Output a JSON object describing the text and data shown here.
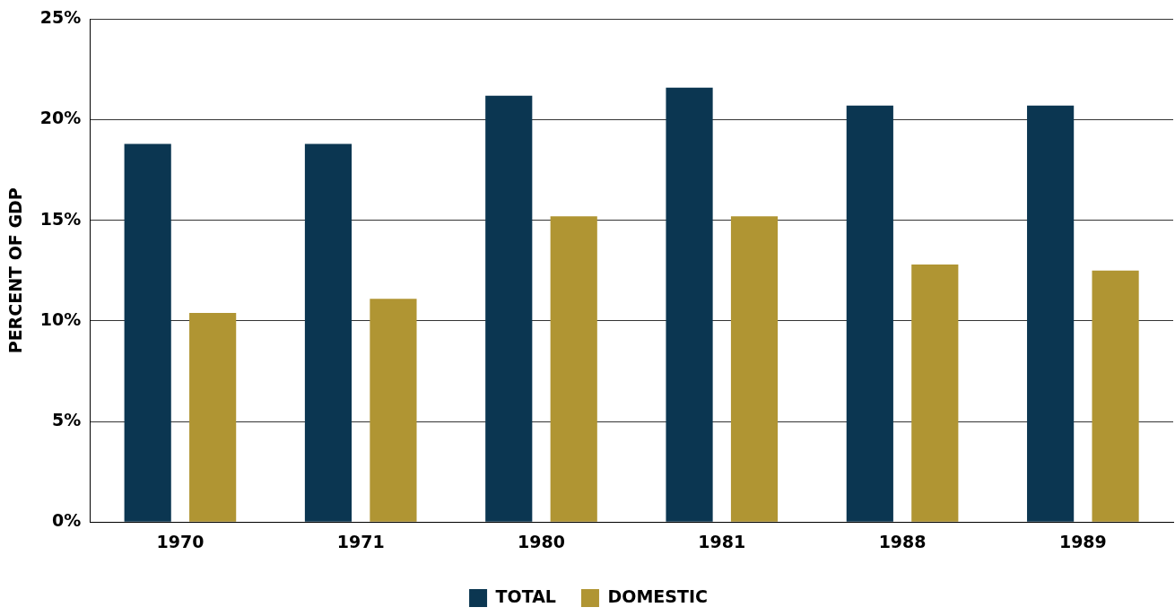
{
  "chart_data": {
    "type": "bar",
    "ylabel": "PERCENT OF GDP",
    "categories": [
      "1970",
      "1971",
      "1980",
      "1981",
      "1988",
      "1989"
    ],
    "series": [
      {
        "name": "TOTAL",
        "color": "#0b3651",
        "values": [
          18.8,
          18.8,
          21.2,
          21.6,
          20.7,
          20.7
        ]
      },
      {
        "name": "DOMESTIC",
        "color": "#b09533",
        "values": [
          10.4,
          11.1,
          15.2,
          15.2,
          12.8,
          12.5
        ]
      }
    ],
    "ylim": [
      0,
      25
    ],
    "yticks": [
      {
        "value": 0,
        "label": "0%"
      },
      {
        "value": 5,
        "label": "5%"
      },
      {
        "value": 10,
        "label": "10%"
      },
      {
        "value": 15,
        "label": "15%"
      },
      {
        "value": 20,
        "label": "20%"
      },
      {
        "value": 25,
        "label": "25%"
      }
    ],
    "grid": "y",
    "legend": "bottom"
  }
}
